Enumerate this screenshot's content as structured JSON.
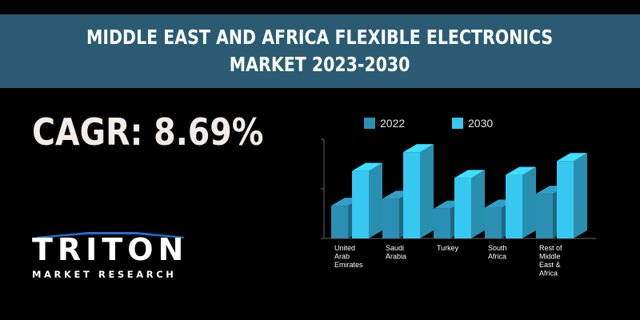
{
  "title": {
    "line1": "MIDDLE EAST AND AFRICA FLEXIBLE ELECTRONICS",
    "line2": "MARKET 2023-2030"
  },
  "cagr": "CAGR: 8.69%",
  "logo": {
    "word": "TRITON",
    "subtitle": "MARKET RESEARCH"
  },
  "colors": {
    "title_band": "#2a5b73",
    "series_2022": "#2b8fb3",
    "series_2030": "#37c8f2",
    "logo_accent": "#1f6fd6"
  },
  "chart_data": {
    "type": "bar",
    "categories": [
      [
        "United",
        "Arab",
        "Emirates"
      ],
      [
        "Saudi",
        "Arabia"
      ],
      [
        "Turkey"
      ],
      [
        "South",
        "Africa"
      ],
      [
        "Rest of",
        "Middle",
        "East &",
        "Africa"
      ]
    ],
    "series": [
      {
        "name": "2022",
        "values": [
          33,
          40,
          30,
          31,
          45
        ]
      },
      {
        "name": "2030",
        "values": [
          68,
          87,
          61,
          64,
          78
        ]
      }
    ],
    "ylim": [
      0,
      100
    ],
    "grid": false,
    "legend": "top"
  }
}
